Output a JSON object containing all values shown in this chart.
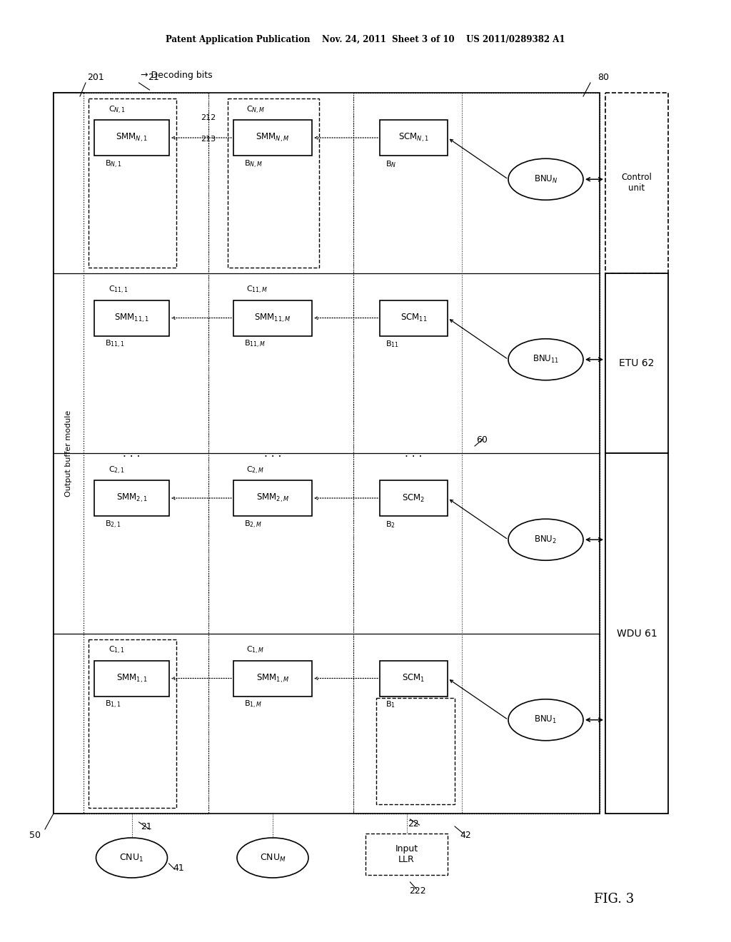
{
  "bg_color": "#ffffff",
  "header": "Patent Application Publication    Nov. 24, 2011  Sheet 3 of 10    US 2011/0289382 A1",
  "fig_label": "FIG. 3",
  "smm1_labels": [
    "SMM$_{1,1}$",
    "SMM$_{2,1}$",
    "SMM$_{11,1}$",
    "SMM$_{N,1}$"
  ],
  "smmM_labels": [
    "SMM$_{1,M}$",
    "SMM$_{2,M}$",
    "SMM$_{11,M}$",
    "SMM$_{N,M}$"
  ],
  "scm_labels": [
    "SCM$_1$",
    "SCM$_2$",
    "SCM$_{11}$",
    "SCM$_{N,1}$"
  ],
  "bnu_labels": [
    "BNU$_1$",
    "BNU$_2$",
    "BNU$_{11}$",
    "BNU$_N$"
  ],
  "c1_labels": [
    "C$_{1,1}$",
    "C$_{2,1}$",
    "C$_{11,1}$",
    "C$_{N,1}$"
  ],
  "cM_labels": [
    "C$_{1,M}$",
    "C$_{2,M}$",
    "C$_{11,M}$",
    "C$_{N,M}$"
  ],
  "b1_labels": [
    "B$_{1,1}$",
    "B$_{2,1}$",
    "B$_{11,1}$",
    "B$_{N,1}$"
  ],
  "bM_labels": [
    "B$_{1,M}$",
    "B$_{2,M}$",
    "B$_{11,M}$",
    "B$_{N,M}$"
  ],
  "b_labels": [
    "B$_1$",
    "B$_2$",
    "B$_{11}$",
    "B$_N$"
  ]
}
